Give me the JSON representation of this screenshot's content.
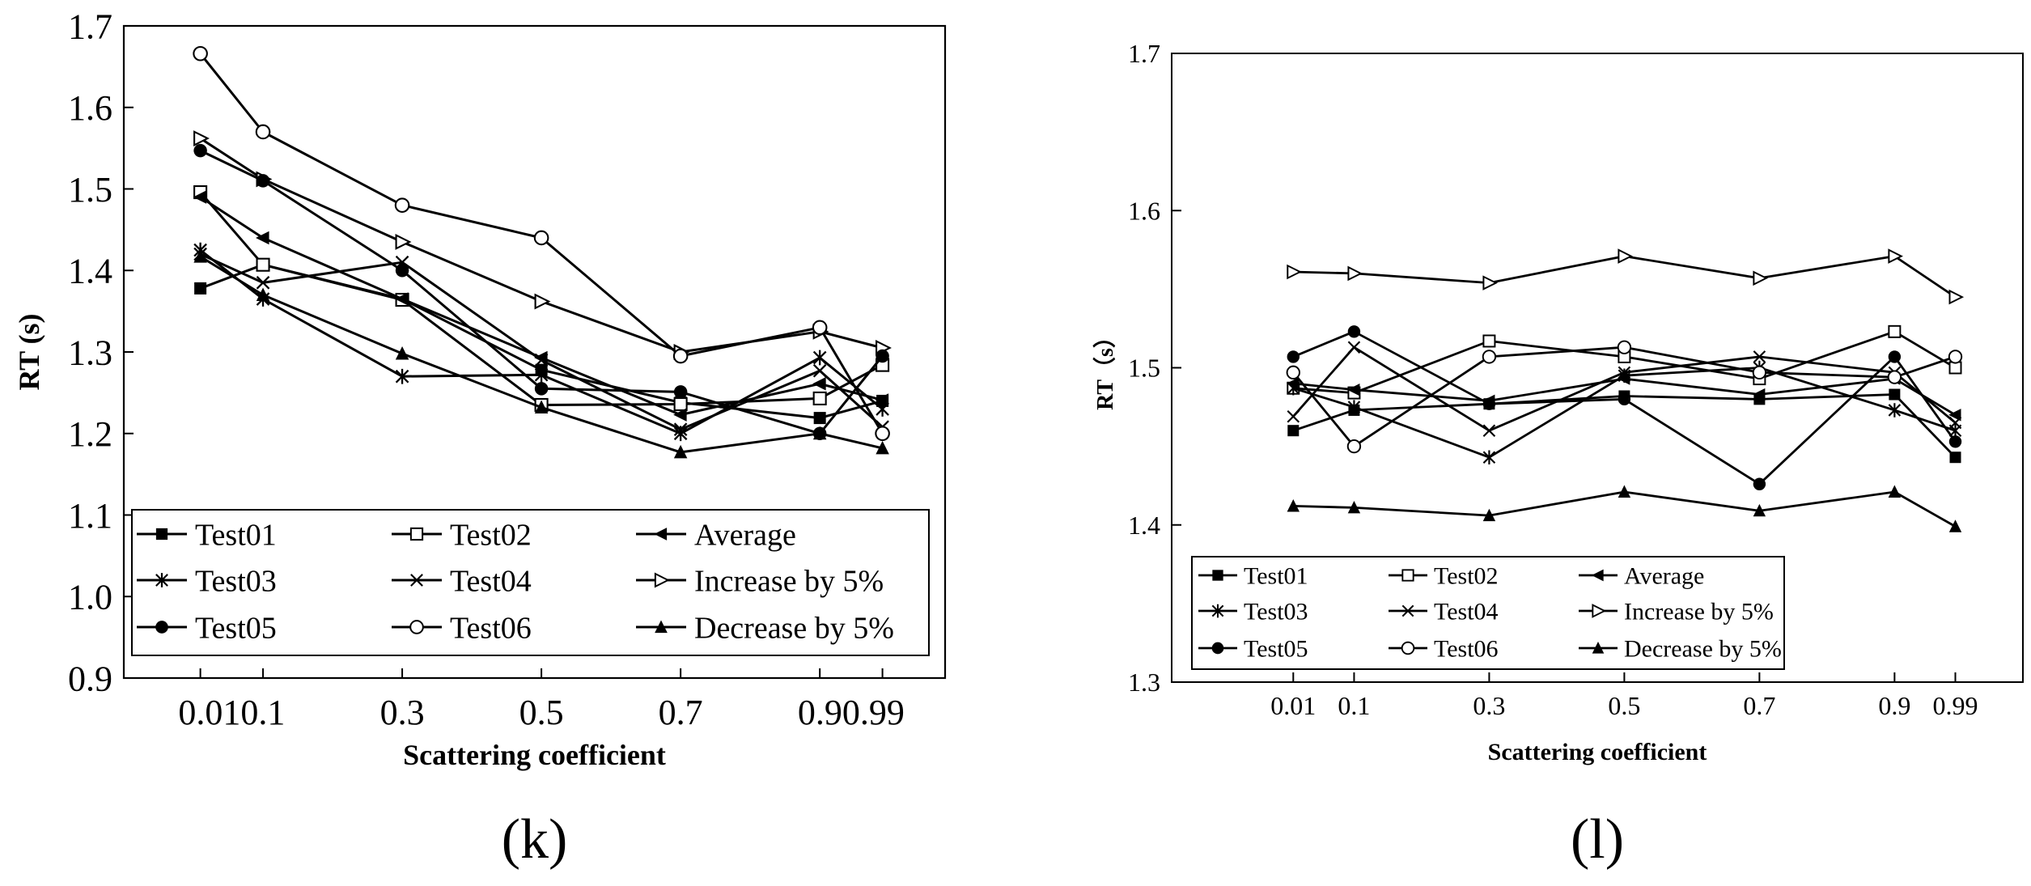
{
  "chart_data": [
    {
      "type": "line",
      "panel_label": "(k)",
      "xlabel": "Scattering coefficient",
      "ylabel": "RT (s)",
      "x": [
        0.01,
        0.1,
        0.3,
        0.5,
        0.7,
        0.9,
        0.99
      ],
      "x_tick_labels": [
        "0.010.1",
        "0.3",
        "0.5",
        "0.7",
        "0.90.99"
      ],
      "xlim": [
        -0.1,
        1.08
      ],
      "ylim": [
        0.9,
        1.7
      ],
      "y_ticks": [
        "0.9",
        "1.0",
        "1.1",
        "1.2",
        "1.3",
        "1.4",
        "1.5",
        "1.6",
        "1.7"
      ],
      "legend_position": "bottom-left",
      "series": [
        {
          "name": "Test01",
          "marker": "square-filled",
          "values": [
            1.378,
            1.407,
            1.365,
            1.278,
            1.238,
            1.219,
            1.24
          ]
        },
        {
          "name": "Test02",
          "marker": "square-open",
          "values": [
            1.496,
            1.407,
            1.364,
            1.235,
            1.236,
            1.243,
            1.284
          ]
        },
        {
          "name": "Average",
          "marker": "triangle-left-filled",
          "values": [
            1.49,
            1.44,
            1.365,
            1.293,
            1.223,
            1.261,
            1.241
          ]
        },
        {
          "name": "Test03",
          "marker": "asterisk",
          "values": [
            1.425,
            1.365,
            1.27,
            1.272,
            1.2,
            1.293,
            1.23
          ]
        },
        {
          "name": "Test04",
          "marker": "cross",
          "values": [
            1.42,
            1.385,
            1.41,
            1.29,
            1.205,
            1.277,
            1.208
          ]
        },
        {
          "name": "Increase by 5%",
          "marker": "triangle-right-open",
          "values": [
            1.562,
            1.512,
            1.435,
            1.362,
            1.3,
            1.325,
            1.305
          ]
        },
        {
          "name": "Test05",
          "marker": "circle-filled",
          "values": [
            1.547,
            1.51,
            1.4,
            1.255,
            1.251,
            1.2,
            1.295
          ]
        },
        {
          "name": "Test06",
          "marker": "circle-open",
          "values": [
            1.666,
            1.57,
            1.48,
            1.44,
            1.295,
            1.33,
            1.2
          ]
        },
        {
          "name": "Decrease by 5%",
          "marker": "triangle-up-filled",
          "values": [
            1.417,
            1.37,
            1.298,
            1.232,
            1.177,
            1.2,
            1.182
          ]
        }
      ]
    },
    {
      "type": "line",
      "panel_label": "(l)",
      "xlabel": "Scattering coefficient",
      "ylabel": "RT（s）",
      "x": [
        0.01,
        0.1,
        0.3,
        0.5,
        0.7,
        0.9,
        0.99
      ],
      "x_tick_labels": [
        "0.01",
        "0.1",
        "0.3",
        "0.5",
        "0.7",
        "0.9",
        "0.99"
      ],
      "xlim": [
        -0.17,
        1.09
      ],
      "ylim": [
        1.3,
        1.7
      ],
      "y_ticks": [
        "1.3",
        "1.4",
        "1.5",
        "1.6",
        "1.7"
      ],
      "legend_position": "bottom-left",
      "series": [
        {
          "name": "Test01",
          "marker": "square-filled",
          "values": [
            1.46,
            1.473,
            1.477,
            1.482,
            1.48,
            1.483,
            1.443
          ]
        },
        {
          "name": "Test02",
          "marker": "square-open",
          "values": [
            1.487,
            1.484,
            1.517,
            1.507,
            1.493,
            1.523,
            1.5
          ]
        },
        {
          "name": "Average",
          "marker": "triangle-left-filled",
          "values": [
            1.49,
            1.486,
            1.479,
            1.493,
            1.483,
            1.493,
            1.47
          ]
        },
        {
          "name": "Test03",
          "marker": "asterisk",
          "values": [
            1.487,
            1.475,
            1.443,
            1.495,
            1.5,
            1.473,
            1.46
          ]
        },
        {
          "name": "Test04",
          "marker": "cross",
          "values": [
            1.469,
            1.513,
            1.46,
            1.497,
            1.507,
            1.497,
            1.465
          ]
        },
        {
          "name": "Increase by 5%",
          "marker": "triangle-right-open",
          "values": [
            1.561,
            1.56,
            1.554,
            1.571,
            1.557,
            1.571,
            1.545
          ]
        },
        {
          "name": "Test05",
          "marker": "circle-filled",
          "values": [
            1.507,
            1.523,
            1.477,
            1.48,
            1.426,
            1.507,
            1.453
          ]
        },
        {
          "name": "Test06",
          "marker": "circle-open",
          "values": [
            1.497,
            1.45,
            1.507,
            1.513,
            1.497,
            1.494,
            1.507
          ]
        },
        {
          "name": "Decrease by 5%",
          "marker": "triangle-up-filled",
          "values": [
            1.412,
            1.411,
            1.406,
            1.421,
            1.409,
            1.421,
            1.399
          ]
        }
      ]
    }
  ]
}
